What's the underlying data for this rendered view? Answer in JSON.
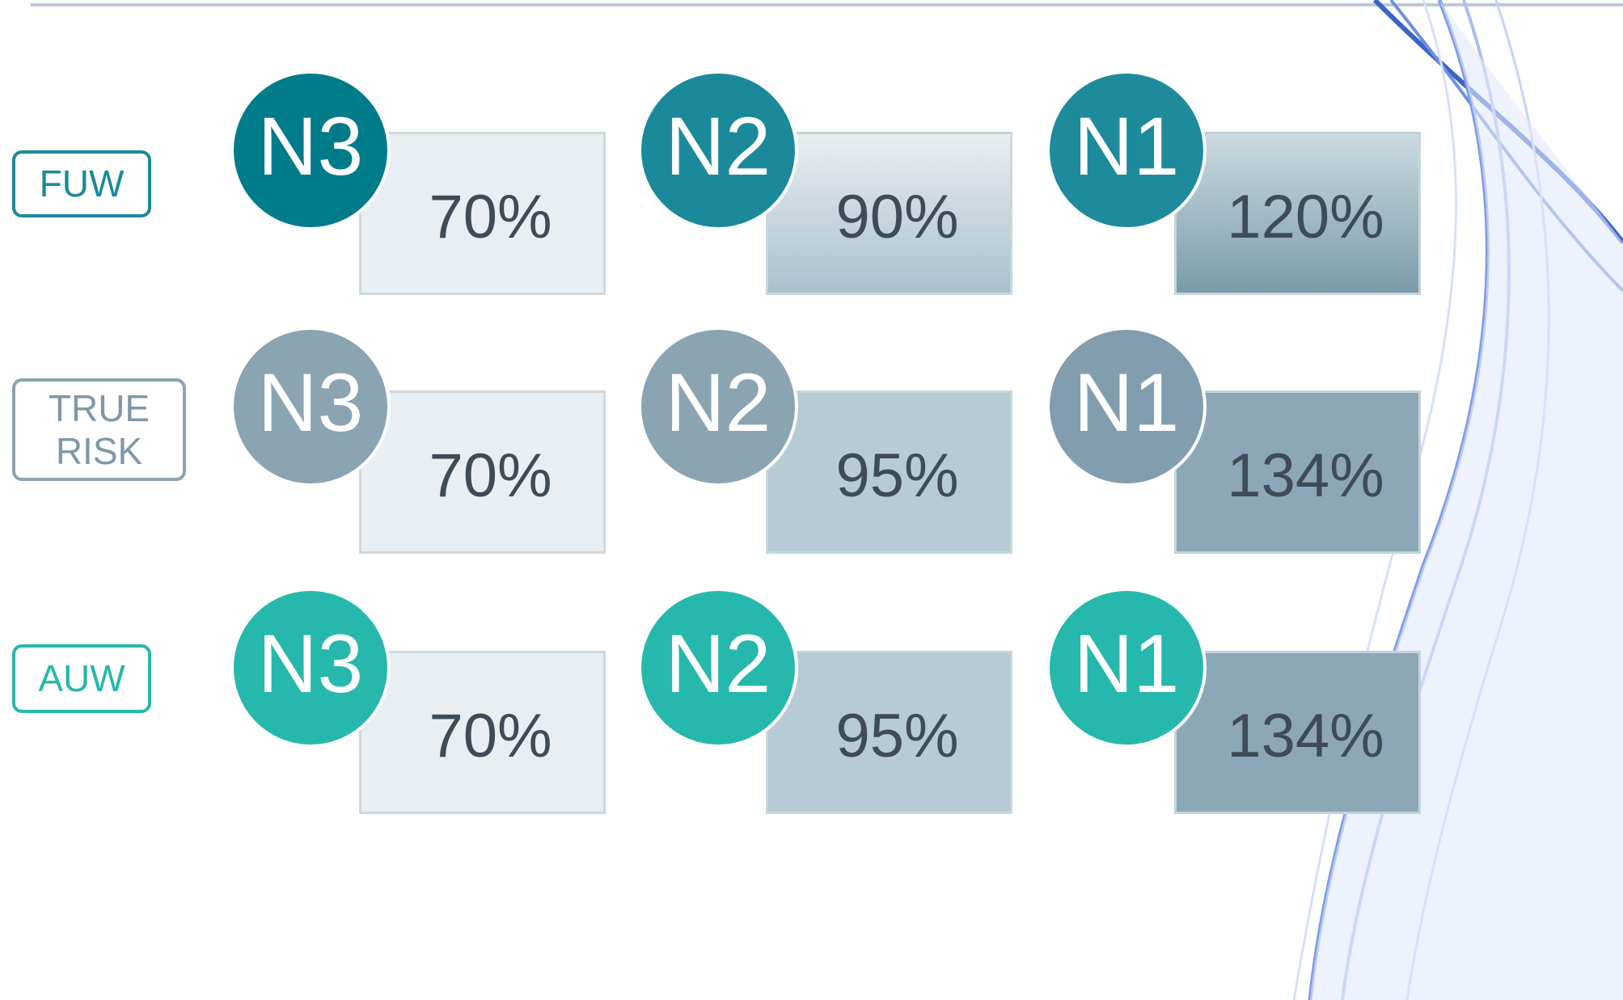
{
  "rows": [
    {
      "label": "FUW",
      "cells": [
        {
          "node": "N3",
          "value": "70%"
        },
        {
          "node": "N2",
          "value": "90%"
        },
        {
          "node": "N1",
          "value": "120%"
        }
      ]
    },
    {
      "label": "TRUE RISK",
      "cells": [
        {
          "node": "N3",
          "value": "70%"
        },
        {
          "node": "N2",
          "value": "95%"
        },
        {
          "node": "N1",
          "value": "134%"
        }
      ]
    },
    {
      "label": "AUW",
      "cells": [
        {
          "node": "N3",
          "value": "70%"
        },
        {
          "node": "N2",
          "value": "95%"
        },
        {
          "node": "N1",
          "value": "134%"
        }
      ]
    }
  ]
}
